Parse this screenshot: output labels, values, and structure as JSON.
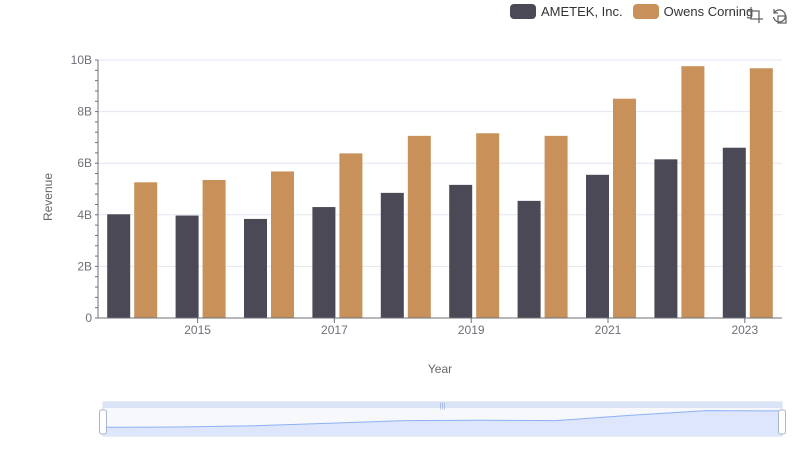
{
  "chart_data": {
    "type": "bar",
    "categories": [
      "2014",
      "2015",
      "2016",
      "2017",
      "2018",
      "2019",
      "2020",
      "2021",
      "2022",
      "2023"
    ],
    "x_tick_labels": [
      "2015",
      "2017",
      "2019",
      "2021",
      "2023"
    ],
    "series": [
      {
        "name": "AMETEK, Inc.",
        "color": "#4a4955",
        "values": [
          4.02,
          3.97,
          3.84,
          4.3,
          4.85,
          5.16,
          4.54,
          5.55,
          6.15,
          6.6
        ]
      },
      {
        "name": "Owens Corning",
        "color": "#c8915a",
        "values": [
          5.26,
          5.35,
          5.68,
          6.38,
          7.06,
          7.16,
          7.06,
          8.5,
          9.76,
          9.68
        ]
      }
    ],
    "y_ticks": [
      "0",
      "2B",
      "4B",
      "6B",
      "8B",
      "10B"
    ],
    "ylim": [
      0,
      10
    ],
    "unit": "B",
    "xlabel": "Year",
    "ylabel": "Revenue",
    "grid": true,
    "legend_position": "top-right"
  },
  "toolbox": {
    "zoom_icon": "zoom-icon",
    "restore_icon": "restore-icon"
  },
  "colors": {
    "slider_fill": "#dde6fb",
    "slider_line": "#8fb0f7",
    "axis": "#6e7079",
    "grid": "#e0e6f1"
  }
}
